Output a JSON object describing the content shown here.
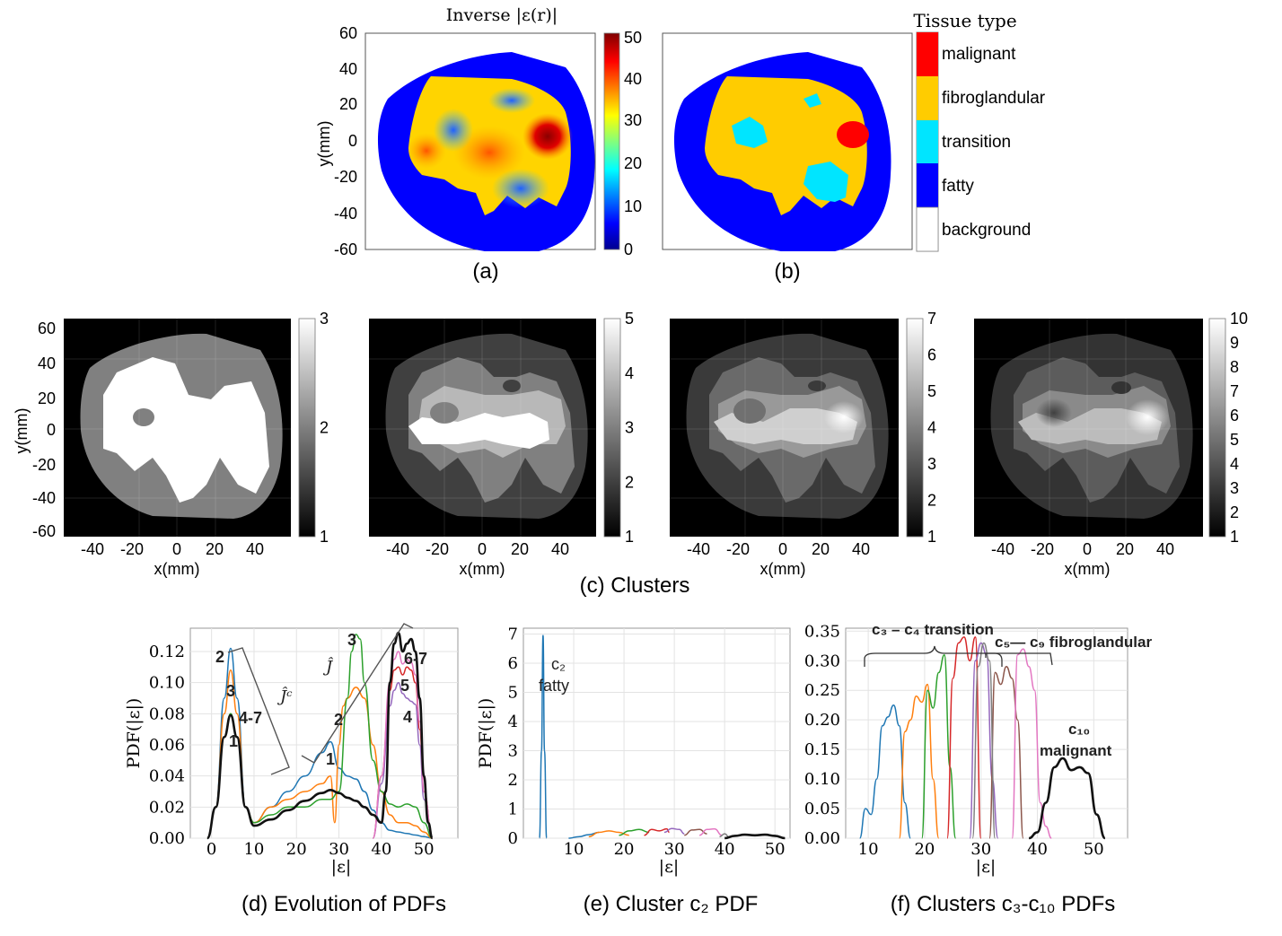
{
  "panel_a": {
    "title": "Inverse |ε(r)|",
    "ylabel": "y(mm)",
    "yticks": [
      "60",
      "40",
      "20",
      "0",
      "-20",
      "-40",
      "-60"
    ],
    "colorbar_ticks": [
      "50",
      "40",
      "30",
      "20",
      "10",
      "0"
    ],
    "caption": "(a)"
  },
  "panel_b": {
    "legend_title": "Tissue type",
    "legend": [
      {
        "label": "malignant",
        "color": "#ff0000"
      },
      {
        "label": "fibroglandular",
        "color": "#ffcc00"
      },
      {
        "label": "transition",
        "color": "#00e5ff"
      },
      {
        "label": "fatty",
        "color": "#0000ff"
      },
      {
        "label": "background",
        "color": "#ffffff"
      }
    ],
    "caption": "(b)"
  },
  "panel_c": {
    "caption": "(c) Clusters",
    "ylabel": "y(mm)",
    "xlabel": "x(mm)",
    "yticks": [
      "60",
      "40",
      "20",
      "0",
      "-20",
      "-40",
      "-60"
    ],
    "xticks": [
      "-40",
      "-20",
      "0",
      "20",
      "40"
    ],
    "colorbars": [
      [
        "3",
        "2",
        "1"
      ],
      [
        "5",
        "4",
        "3",
        "2",
        "1"
      ],
      [
        "7",
        "6",
        "5",
        "4",
        "3",
        "2",
        "1"
      ],
      [
        "10",
        "9",
        "8",
        "7",
        "6",
        "5",
        "4",
        "3",
        "2",
        "1"
      ]
    ]
  },
  "chart_data": [
    {
      "type": "line",
      "caption": "(d) Evolution of PDFs",
      "xlabel": "|ε|",
      "ylabel": "PDF(|ε|)",
      "xlim": [
        -5,
        58
      ],
      "ylim": [
        0,
        0.135
      ],
      "xticks": [
        "0",
        "10",
        "20",
        "30",
        "40",
        "50"
      ],
      "yticks": [
        "0.00",
        "0.02",
        "0.04",
        "0.06",
        "0.08",
        "0.10",
        "0.12"
      ],
      "annotations": [
        "2",
        "3",
        "4-7",
        "1",
        "2",
        "3",
        "1",
        "5",
        "4",
        "6-7",
        "Ĵᶜ",
        "Ĵ"
      ],
      "series": [
        {
          "color": "#1f77b4",
          "x": [
            -1,
            1,
            3,
            4.5,
            6,
            8,
            10,
            14,
            18,
            22,
            26,
            28,
            30,
            32,
            34,
            36,
            38,
            40,
            42,
            44,
            46,
            48,
            50,
            52
          ],
          "y": [
            0,
            0.02,
            0.09,
            0.122,
            0.09,
            0.02,
            0.01,
            0.02,
            0.03,
            0.04,
            0.055,
            0.062,
            0.045,
            0.04,
            0.038,
            0.03,
            0.018,
            0.01,
            0.005,
            0.004,
            0.003,
            0.002,
            0.001,
            0
          ]
        },
        {
          "color": "#ff7f0e",
          "x": [
            -1,
            1,
            3,
            4.5,
            6,
            8,
            10,
            14,
            18,
            22,
            26,
            28,
            29,
            30,
            31,
            32,
            34,
            36,
            38,
            40,
            42,
            44,
            46,
            48,
            50,
            52
          ],
          "y": [
            0,
            0.02,
            0.08,
            0.108,
            0.08,
            0.02,
            0.01,
            0.02,
            0.025,
            0.03,
            0.035,
            0.04,
            0.01,
            0.06,
            0.085,
            0.09,
            0.097,
            0.09,
            0.06,
            0.03,
            0.015,
            0.01,
            0.01,
            0.008,
            0.004,
            0
          ]
        },
        {
          "color": "#2ca02c",
          "x": [
            -1,
            1,
            3,
            4.5,
            6,
            8,
            10,
            14,
            18,
            22,
            26,
            28,
            30,
            32,
            33,
            34,
            35,
            36,
            38,
            40,
            42,
            44,
            46,
            48,
            50,
            52
          ],
          "y": [
            0,
            0.02,
            0.065,
            0.08,
            0.065,
            0.02,
            0.01,
            0.015,
            0.02,
            0.02,
            0.025,
            0.025,
            0.03,
            0.09,
            0.12,
            0.131,
            0.128,
            0.1,
            0.05,
            0.03,
            0.022,
            0.02,
            0.022,
            0.02,
            0.01,
            0
          ]
        },
        {
          "color": "#d62728",
          "x": [
            38,
            40,
            42,
            43,
            44,
            45,
            46,
            47,
            48,
            49,
            50,
            52
          ],
          "y": [
            0,
            0.04,
            0.095,
            0.108,
            0.11,
            0.105,
            0.11,
            0.108,
            0.1,
            0.07,
            0.03,
            0
          ]
        },
        {
          "color": "#9467bd",
          "x": [
            38,
            40,
            42,
            43,
            44,
            45,
            46,
            47,
            48,
            49,
            50,
            52
          ],
          "y": [
            0,
            0.035,
            0.085,
            0.095,
            0.1,
            0.093,
            0.09,
            0.088,
            0.086,
            0.06,
            0.025,
            0
          ]
        },
        {
          "color": "#e377c2",
          "x": [
            38,
            40,
            42,
            43,
            44,
            45,
            46,
            47,
            48,
            49,
            50,
            52
          ],
          "y": [
            0,
            0.04,
            0.1,
            0.115,
            0.12,
            0.112,
            0.115,
            0.113,
            0.105,
            0.075,
            0.03,
            0
          ]
        },
        {
          "color": "#111111",
          "x": [
            -1,
            1,
            3,
            4.5,
            6,
            8,
            10,
            14,
            18,
            22,
            26,
            28,
            30,
            32,
            34,
            36,
            38,
            40,
            41,
            42,
            43,
            44,
            45,
            46,
            47,
            48,
            49,
            50,
            51,
            52
          ],
          "y": [
            0,
            0.02,
            0.065,
            0.079,
            0.065,
            0.02,
            0.008,
            0.012,
            0.018,
            0.024,
            0.029,
            0.031,
            0.029,
            0.026,
            0.024,
            0.02,
            0.015,
            0.01,
            0.03,
            0.1,
            0.125,
            0.132,
            0.12,
            0.125,
            0.128,
            0.12,
            0.09,
            0.04,
            0.01,
            0
          ]
        }
      ]
    },
    {
      "type": "line",
      "caption": "(e) Cluster c₂ PDF",
      "xlabel": "|ε|",
      "ylabel": "PDF(|ε|)",
      "xlim": [
        0,
        53
      ],
      "ylim": [
        0,
        7.2
      ],
      "xticks": [
        "10",
        "20",
        "30",
        "40",
        "50"
      ],
      "yticks": [
        "0",
        "1",
        "2",
        "3",
        "4",
        "5",
        "6",
        "7"
      ],
      "annotations": [
        "c₂",
        "fatty"
      ],
      "series": [
        {
          "color": "#1f77b4",
          "x": [
            3.2,
            3.6,
            3.9,
            4.2,
            4.6
          ],
          "y": [
            0,
            3,
            6.95,
            3,
            0
          ]
        },
        {
          "color": "#1f77b4",
          "x": [
            9,
            11,
            13,
            15
          ],
          "y": [
            0,
            0.05,
            0.12,
            0.2
          ]
        },
        {
          "color": "#ff7f0e",
          "x": [
            13,
            15,
            17,
            19,
            21
          ],
          "y": [
            0.05,
            0.2,
            0.25,
            0.2,
            0.1
          ]
        },
        {
          "color": "#2ca02c",
          "x": [
            19,
            21,
            23,
            25
          ],
          "y": [
            0.1,
            0.25,
            0.3,
            0.2
          ]
        },
        {
          "color": "#d62728",
          "x": [
            24,
            25.5,
            27,
            28.5,
            29
          ],
          "y": [
            0.1,
            0.3,
            0.25,
            0.32,
            0.2
          ]
        },
        {
          "color": "#9467bd",
          "x": [
            28,
            29.5,
            31,
            32
          ],
          "y": [
            0.2,
            0.33,
            0.3,
            0.15
          ]
        },
        {
          "color": "#8c564b",
          "x": [
            32,
            33.5,
            35,
            36.5
          ],
          "y": [
            0.1,
            0.28,
            0.3,
            0.15
          ]
        },
        {
          "color": "#e377c2",
          "x": [
            35,
            36.5,
            38,
            39.5
          ],
          "y": [
            0.1,
            0.3,
            0.32,
            0.1
          ]
        },
        {
          "color": "#7f7f7f",
          "x": [
            39,
            40,
            41
          ],
          "y": [
            0.05,
            0.15,
            0.02
          ]
        },
        {
          "color": "#111111",
          "x": [
            40,
            42,
            44,
            46,
            48,
            50,
            52
          ],
          "y": [
            0,
            0.08,
            0.12,
            0.1,
            0.12,
            0.08,
            0
          ]
        }
      ]
    },
    {
      "type": "line",
      "caption": "(f) Clusters c₃-c₁₀ PDFs",
      "xlabel": "|ε|",
      "ylim": [
        0,
        0.355
      ],
      "xlim": [
        6,
        56
      ],
      "xticks": [
        "10",
        "20",
        "30",
        "40",
        "50"
      ],
      "yticks": [
        "0.00",
        "0.05",
        "0.10",
        "0.15",
        "0.20",
        "0.25",
        "0.30",
        "0.35"
      ],
      "annotations": [
        "c₃ – c₄ transition",
        "c₅— c₉ fibroglandular",
        "c₁₀",
        "malignant"
      ],
      "series": [
        {
          "color": "#1f77b4",
          "x": [
            8.5,
            9.5,
            10.5,
            11.5,
            12.5,
            13.5,
            14.5,
            15.5,
            16.5,
            17.5
          ],
          "y": [
            0,
            0.05,
            0.04,
            0.1,
            0.19,
            0.205,
            0.225,
            0.19,
            0.06,
            0
          ]
        },
        {
          "color": "#ff7f0e",
          "x": [
            15.5,
            16.5,
            17.5,
            18.5,
            19.5,
            20.5,
            21.5,
            22.5
          ],
          "y": [
            0,
            0.18,
            0.2,
            0.24,
            0.23,
            0.26,
            0.1,
            0
          ]
        },
        {
          "color": "#2ca02c",
          "x": [
            19.5,
            20.5,
            21.5,
            22.5,
            23.5,
            24.5,
            25.5
          ],
          "y": [
            0,
            0.25,
            0.22,
            0.28,
            0.31,
            0.12,
            0
          ]
        },
        {
          "color": "#d62728",
          "x": [
            24,
            25,
            26,
            27,
            28,
            29,
            30
          ],
          "y": [
            0,
            0.27,
            0.33,
            0.34,
            0.3,
            0.34,
            0
          ]
        },
        {
          "color": "#9467bd",
          "x": [
            28,
            29,
            30,
            31,
            32,
            33
          ],
          "y": [
            0,
            0.3,
            0.33,
            0.31,
            0.1,
            0
          ]
        },
        {
          "color": "#8c564b",
          "x": [
            31.5,
            32.5,
            33.5,
            34.5,
            35.5,
            36.5,
            37.5
          ],
          "y": [
            0,
            0.28,
            0.26,
            0.29,
            0.27,
            0.2,
            0
          ]
        },
        {
          "color": "#e377c2",
          "x": [
            35.5,
            36.5,
            37.5,
            38.5,
            39.5,
            40.5,
            41.5,
            42.5
          ],
          "y": [
            0,
            0.31,
            0.32,
            0.29,
            0.25,
            0.06,
            0.02,
            0
          ]
        },
        {
          "color": "#7f7f7f",
          "x": [
            28.5,
            29.5,
            30.5,
            31.5,
            32.5
          ],
          "y": [
            0,
            0.29,
            0.33,
            0.3,
            0
          ]
        },
        {
          "color": "#111111",
          "x": [
            38.5,
            40,
            41.5,
            43,
            44.5,
            46,
            47.5,
            49,
            50.5,
            52
          ],
          "y": [
            0,
            0.01,
            0.06,
            0.12,
            0.135,
            0.115,
            0.12,
            0.11,
            0.04,
            0
          ]
        }
      ]
    }
  ]
}
